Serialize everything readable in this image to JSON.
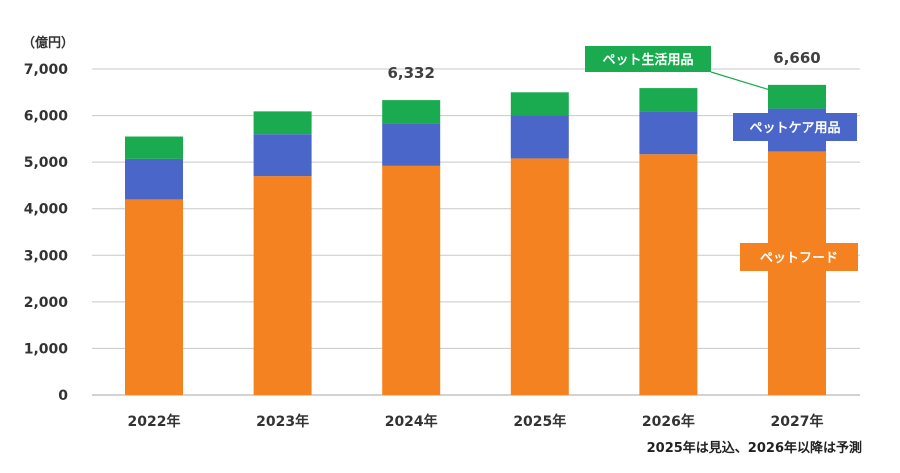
{
  "chart_data": {
    "type": "bar",
    "stacked": true,
    "unit_label": "（億円）",
    "categories": [
      "2022年",
      "2023年",
      "2024年",
      "2025年",
      "2026年",
      "2027年"
    ],
    "series": [
      {
        "name": "ペットフード",
        "color": "#F58220",
        "values": [
          4200,
          4700,
          4920,
          5080,
          5170,
          5230
        ]
      },
      {
        "name": "ペットケア用品",
        "color": "#4A66C8",
        "values": [
          870,
          900,
          900,
          930,
          920,
          920
        ]
      },
      {
        "name": "ペット生活用品",
        "color": "#1AAA50",
        "values": [
          480,
          490,
          512,
          490,
          500,
          510
        ]
      }
    ],
    "yticks": [
      0,
      1000,
      2000,
      3000,
      4000,
      5000,
      6000,
      7000
    ],
    "ytick_labels": [
      "0",
      "1,000",
      "2,000",
      "3,000",
      "4,000",
      "5,000",
      "6,000",
      "7,000"
    ],
    "ylim": [
      0,
      7000
    ],
    "grid": true,
    "total_labels": [
      {
        "category": "2024年",
        "text": "6,332"
      },
      {
        "category": "2027年",
        "text": "6,660"
      }
    ],
    "footnote": "2025年は見込、2026年以降は予測"
  }
}
